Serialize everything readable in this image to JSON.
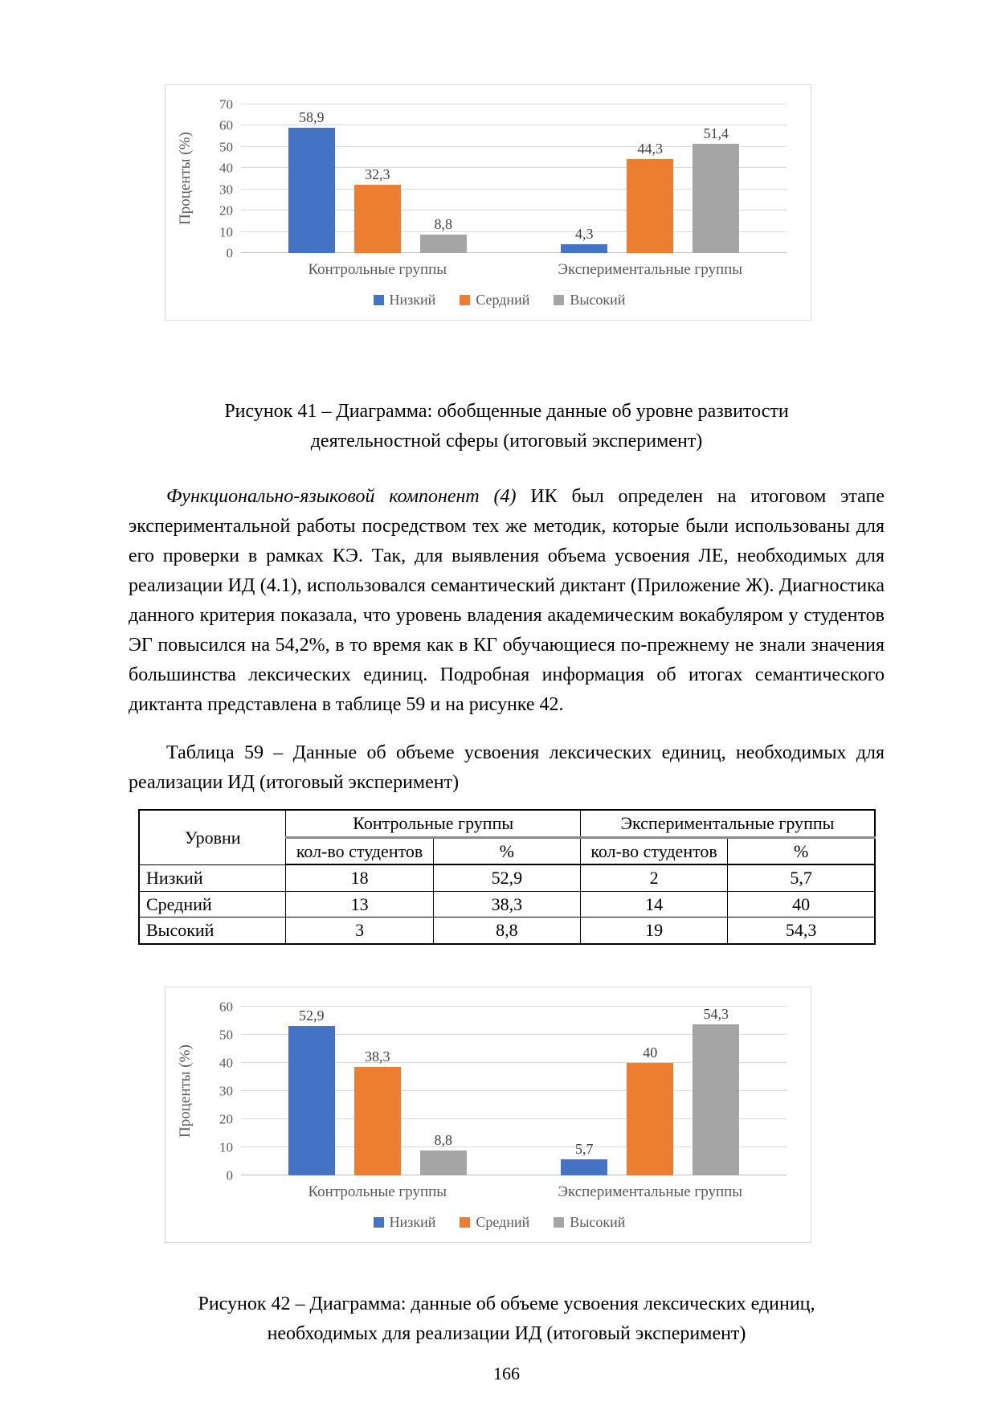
{
  "page_number": "166",
  "figure41": {
    "caption_line1": "Рисунок 41 – Диаграмма: обобщенные данные об уровне развитости",
    "caption_line2": "деятельностной сферы (итоговый эксперимент)"
  },
  "paragraph": {
    "lead_italic": "Функционально-языковой компонент (4)",
    "rest": "ИК был определен на итоговом этапе экспериментальной работы посредством тех же методик, которые были использованы для его проверки в рамках КЭ. Так, для выявления объема усвоения ЛЕ, необходимых для реализации ИД (4.1), использовался семантический диктант (Приложение Ж). Диагностика данного критерия показала, что уровень владения академическим вокабуляром у студентов ЭГ повысился на 54,2%, в то время как в КГ обучающиеся по-прежнему не знали значения большинства лексических единиц. Подробная информация об итогах семантического диктанта представлена в таблице 59 и на рисунке 42."
  },
  "table59": {
    "caption": "Таблица 59 – Данные об объеме усвоения лексических единиц, необходимых для реализации ИД (итоговый эксперимент)",
    "header": {
      "col1": "Уровни",
      "group1": "Контрольные группы",
      "group2": "Экспериментальные группы",
      "sub": [
        "кол-во студентов",
        "%",
        "кол-во студентов",
        "%"
      ]
    },
    "rows": [
      {
        "level": "Низкий",
        "values": [
          "18",
          "52,9",
          "2",
          "5,7"
        ]
      },
      {
        "level": "Средний",
        "values": [
          "13",
          "38,3",
          "14",
          "40"
        ]
      },
      {
        "level": "Высокий",
        "values": [
          "3",
          "8,8",
          "19",
          "54,3"
        ]
      }
    ]
  },
  "figure42": {
    "caption_line1": "Рисунок 42 – Диаграмма: данные об объеме усвоения лексических единиц,",
    "caption_line2": "необходимых для реализации ИД (итоговый эксперимент)"
  },
  "chart_data": [
    {
      "type": "bar",
      "title": "",
      "ylabel": "Проценты (%)",
      "ylim": [
        0,
        70
      ],
      "ytick_step": 10,
      "grid": true,
      "legend_position": "bottom",
      "categories": [
        "Контрольные группы",
        "Экспериментальные группы"
      ],
      "series": [
        {
          "name": "Низкий",
          "color": "#4472C4",
          "values": [
            58.9,
            4.3
          ],
          "value_labels": [
            "58,9",
            "4,3"
          ]
        },
        {
          "name": "Сердний",
          "color": "#ED7D31",
          "values": [
            32.3,
            44.3
          ],
          "value_labels": [
            "32,3",
            "44,3"
          ]
        },
        {
          "name": "Высокий",
          "color": "#A5A5A5",
          "values": [
            8.8,
            51.4
          ],
          "value_labels": [
            "8,8",
            "51,4"
          ]
        }
      ]
    },
    {
      "type": "bar",
      "title": "",
      "ylabel": "Проценты (%)",
      "ylim": [
        0,
        60
      ],
      "ytick_step": 10,
      "grid": true,
      "legend_position": "bottom",
      "categories": [
        "Контрольные группы",
        "Экспериментальные группы"
      ],
      "series": [
        {
          "name": "Низкий",
          "color": "#4472C4",
          "values": [
            52.9,
            5.7
          ],
          "value_labels": [
            "52,9",
            "5,7"
          ]
        },
        {
          "name": "Средний",
          "color": "#ED7D31",
          "values": [
            38.3,
            40
          ],
          "value_labels": [
            "38,3",
            "40"
          ]
        },
        {
          "name": "Высокий",
          "color": "#A5A5A5",
          "values": [
            8.8,
            54.3
          ],
          "value_labels": [
            "8,8",
            "54,3"
          ]
        }
      ]
    }
  ]
}
